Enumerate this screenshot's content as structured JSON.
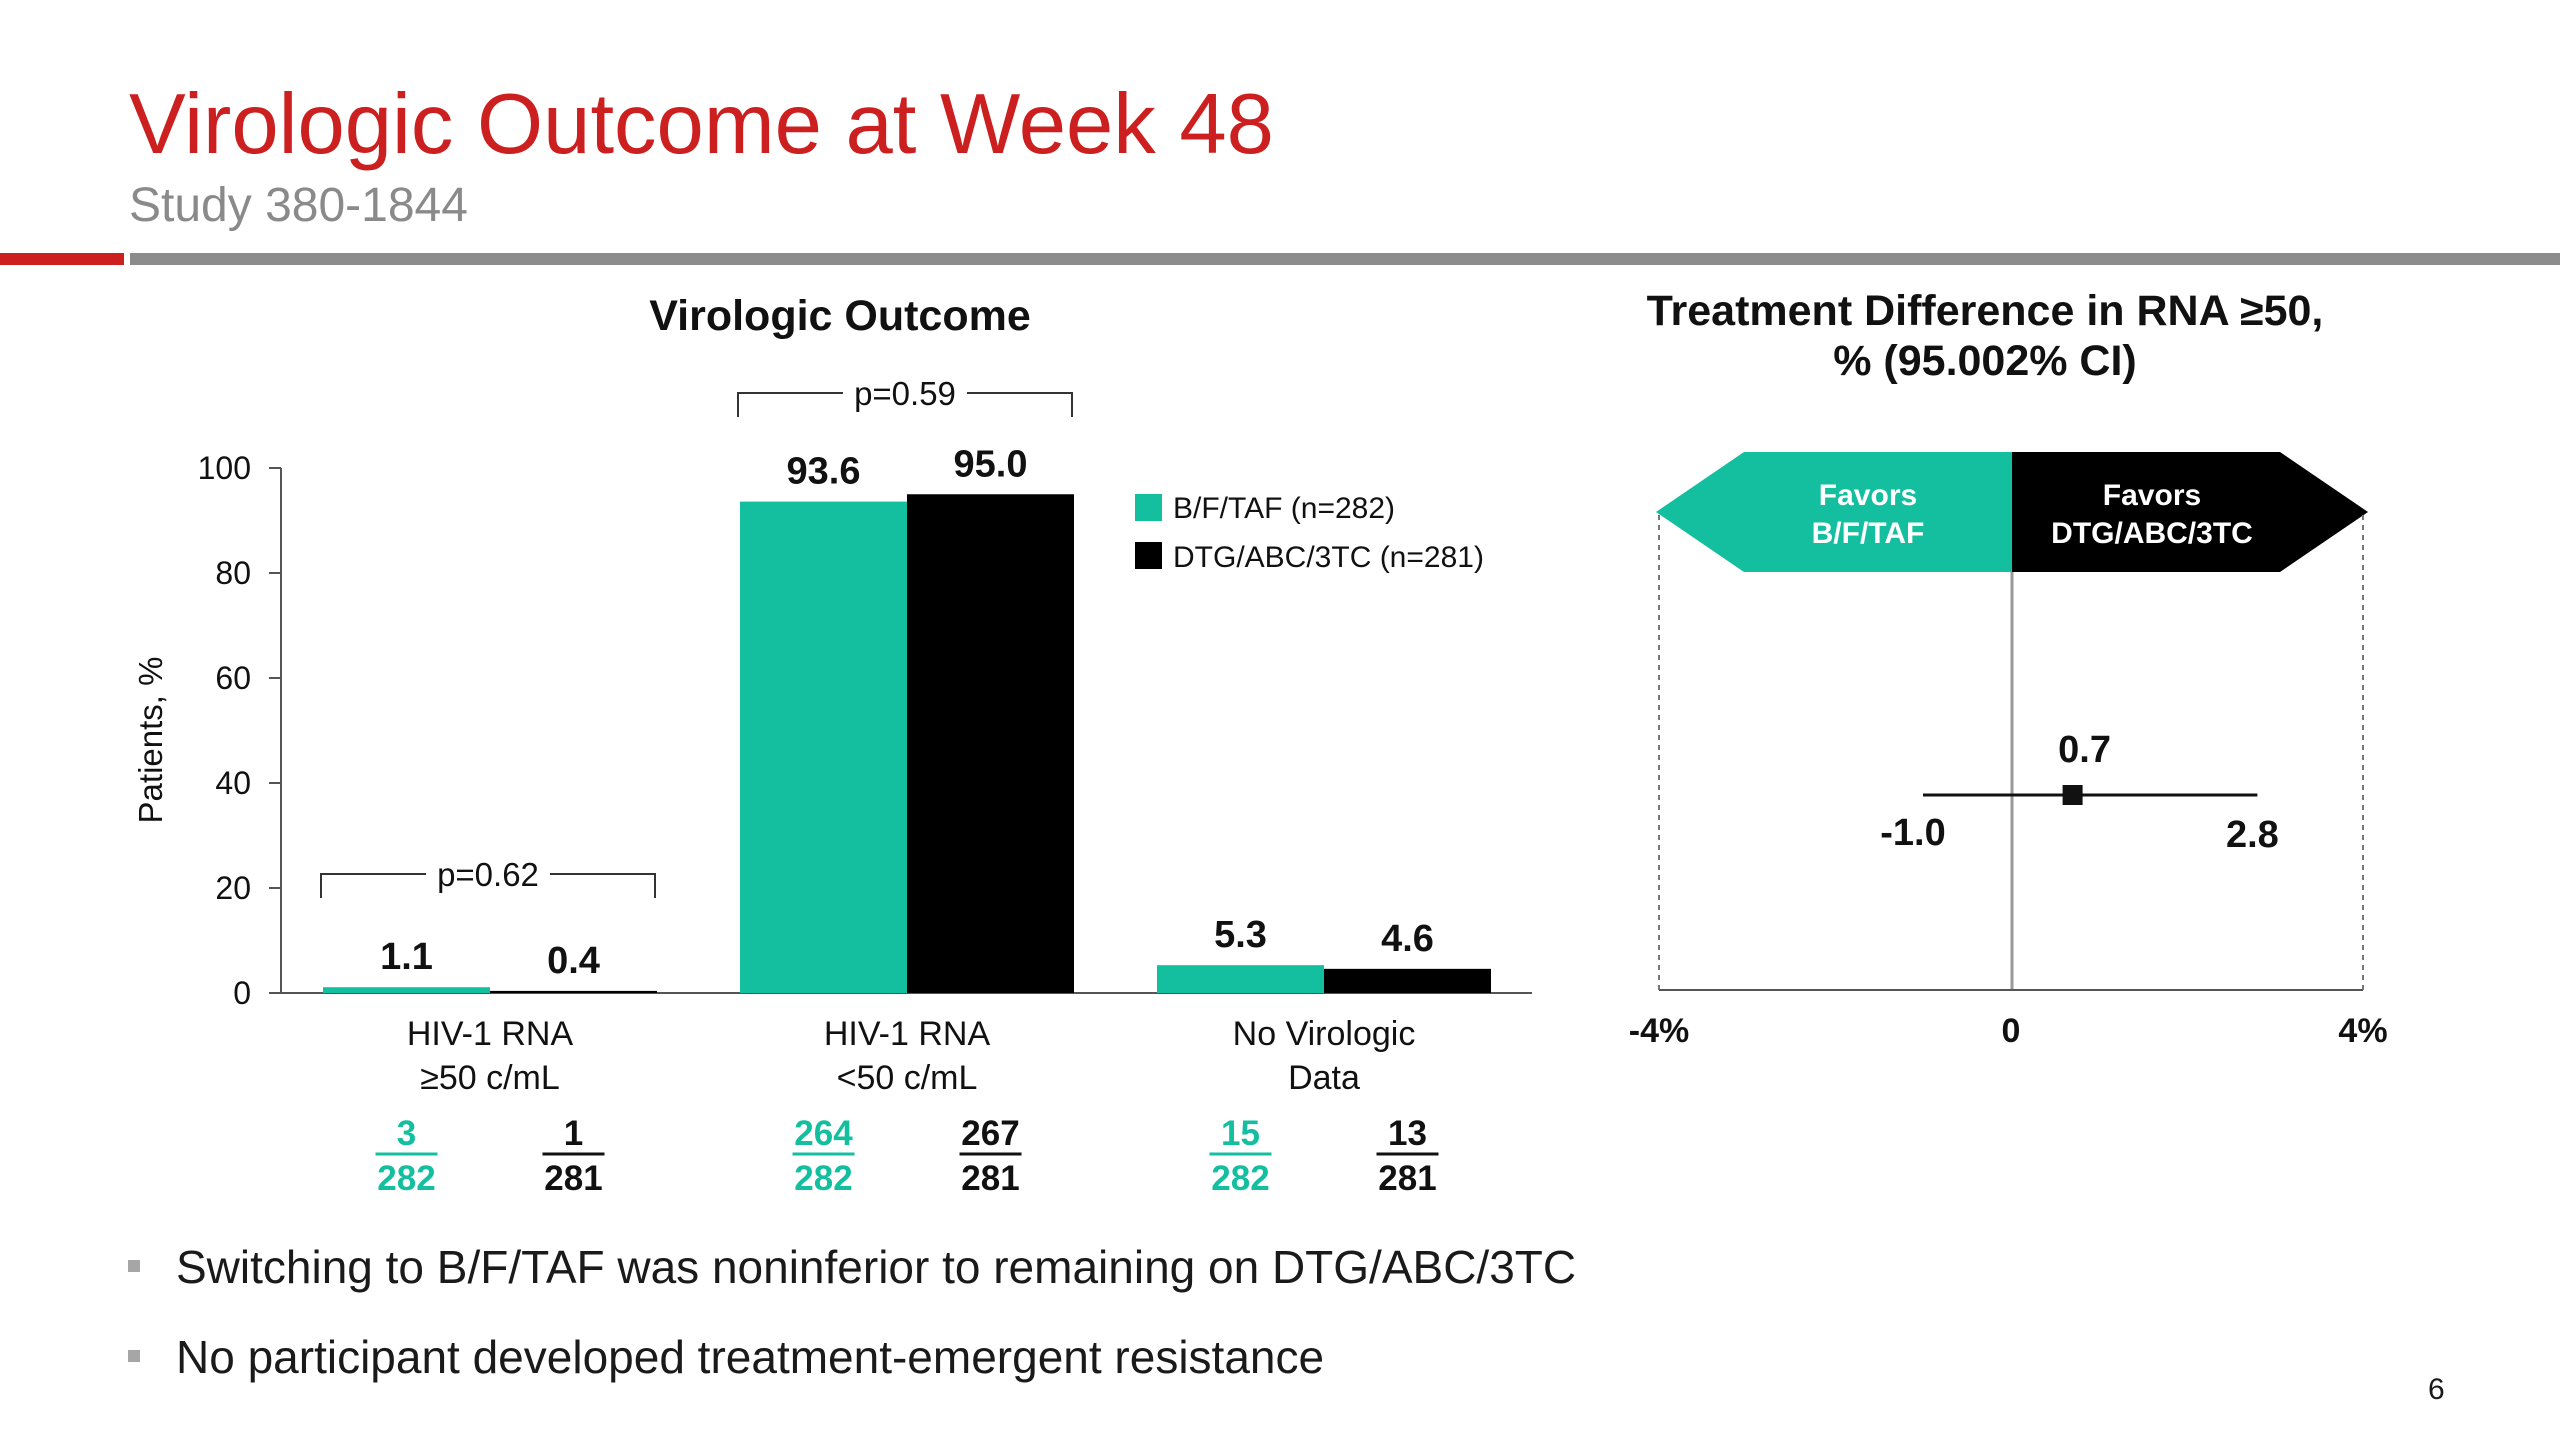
{
  "slide": {
    "title": "Virologic Outcome at Week 48",
    "subtitle": "Study 380-1844",
    "page_number": "6",
    "bullets": [
      "Switching to B/F/TAF was noninferior to remaining on DTG/ABC/3TC",
      "No participant developed treatment-emergent resistance"
    ]
  },
  "colors": {
    "accent_red": "#cc1f1f",
    "rule_gray": "#8c8c8c",
    "bftaf_teal": "#14bfa0",
    "dtg_black": "#000000",
    "bullet_gray": "#a6a6a6"
  },
  "chart_data": [
    {
      "type": "bar",
      "title": "Virologic Outcome",
      "ylabel": "Patients, %",
      "ylim": [
        0,
        100
      ],
      "yticks": [
        "0",
        "20",
        "40",
        "60",
        "80",
        "100"
      ],
      "categories": [
        {
          "line1": "HIV-1 RNA",
          "line2": "≥50 c/mL"
        },
        {
          "line1": "HIV-1 RNA",
          "line2": "<50 c/mL"
        },
        {
          "line1": "No Virologic",
          "line2": "Data"
        }
      ],
      "series": [
        {
          "name": "B/F/TAF (n=282)",
          "values": [
            1.1,
            93.6,
            5.3
          ],
          "labels": [
            "1.1",
            "93.6",
            "5.3"
          ],
          "counts": [
            {
              "num": "3",
              "den": "282"
            },
            {
              "num": "264",
              "den": "282"
            },
            {
              "num": "15",
              "den": "282"
            }
          ]
        },
        {
          "name": "DTG/ABC/3TC (n=281)",
          "values": [
            0.4,
            95.0,
            4.6
          ],
          "labels": [
            "0.4",
            "95.0",
            "4.6"
          ],
          "counts": [
            {
              "num": "1",
              "den": "281"
            },
            {
              "num": "267",
              "den": "281"
            },
            {
              "num": "13",
              "den": "281"
            }
          ]
        }
      ],
      "annotations": [
        {
          "text": "p=0.62",
          "category_index": 0
        },
        {
          "text": "p=0.59",
          "category_index": 1
        }
      ],
      "legend_position": "top-right"
    },
    {
      "type": "scatter",
      "title_line1": "Treatment Difference in RNA ≥50,",
      "title_line2": "% (95.002% CI)",
      "xlim": [
        -4,
        4
      ],
      "xticks": [
        "-4%",
        "0",
        "4%"
      ],
      "point": {
        "estimate": 0.7,
        "lower": -1.0,
        "upper": 2.8,
        "estimate_label": "0.7",
        "lower_label": "-1.0",
        "upper_label": "2.8"
      },
      "favors_left": {
        "line1": "Favors",
        "line2": "B/F/TAF"
      },
      "favors_right": {
        "line1": "Favors",
        "line2": "DTG/ABC/3TC"
      }
    }
  ]
}
